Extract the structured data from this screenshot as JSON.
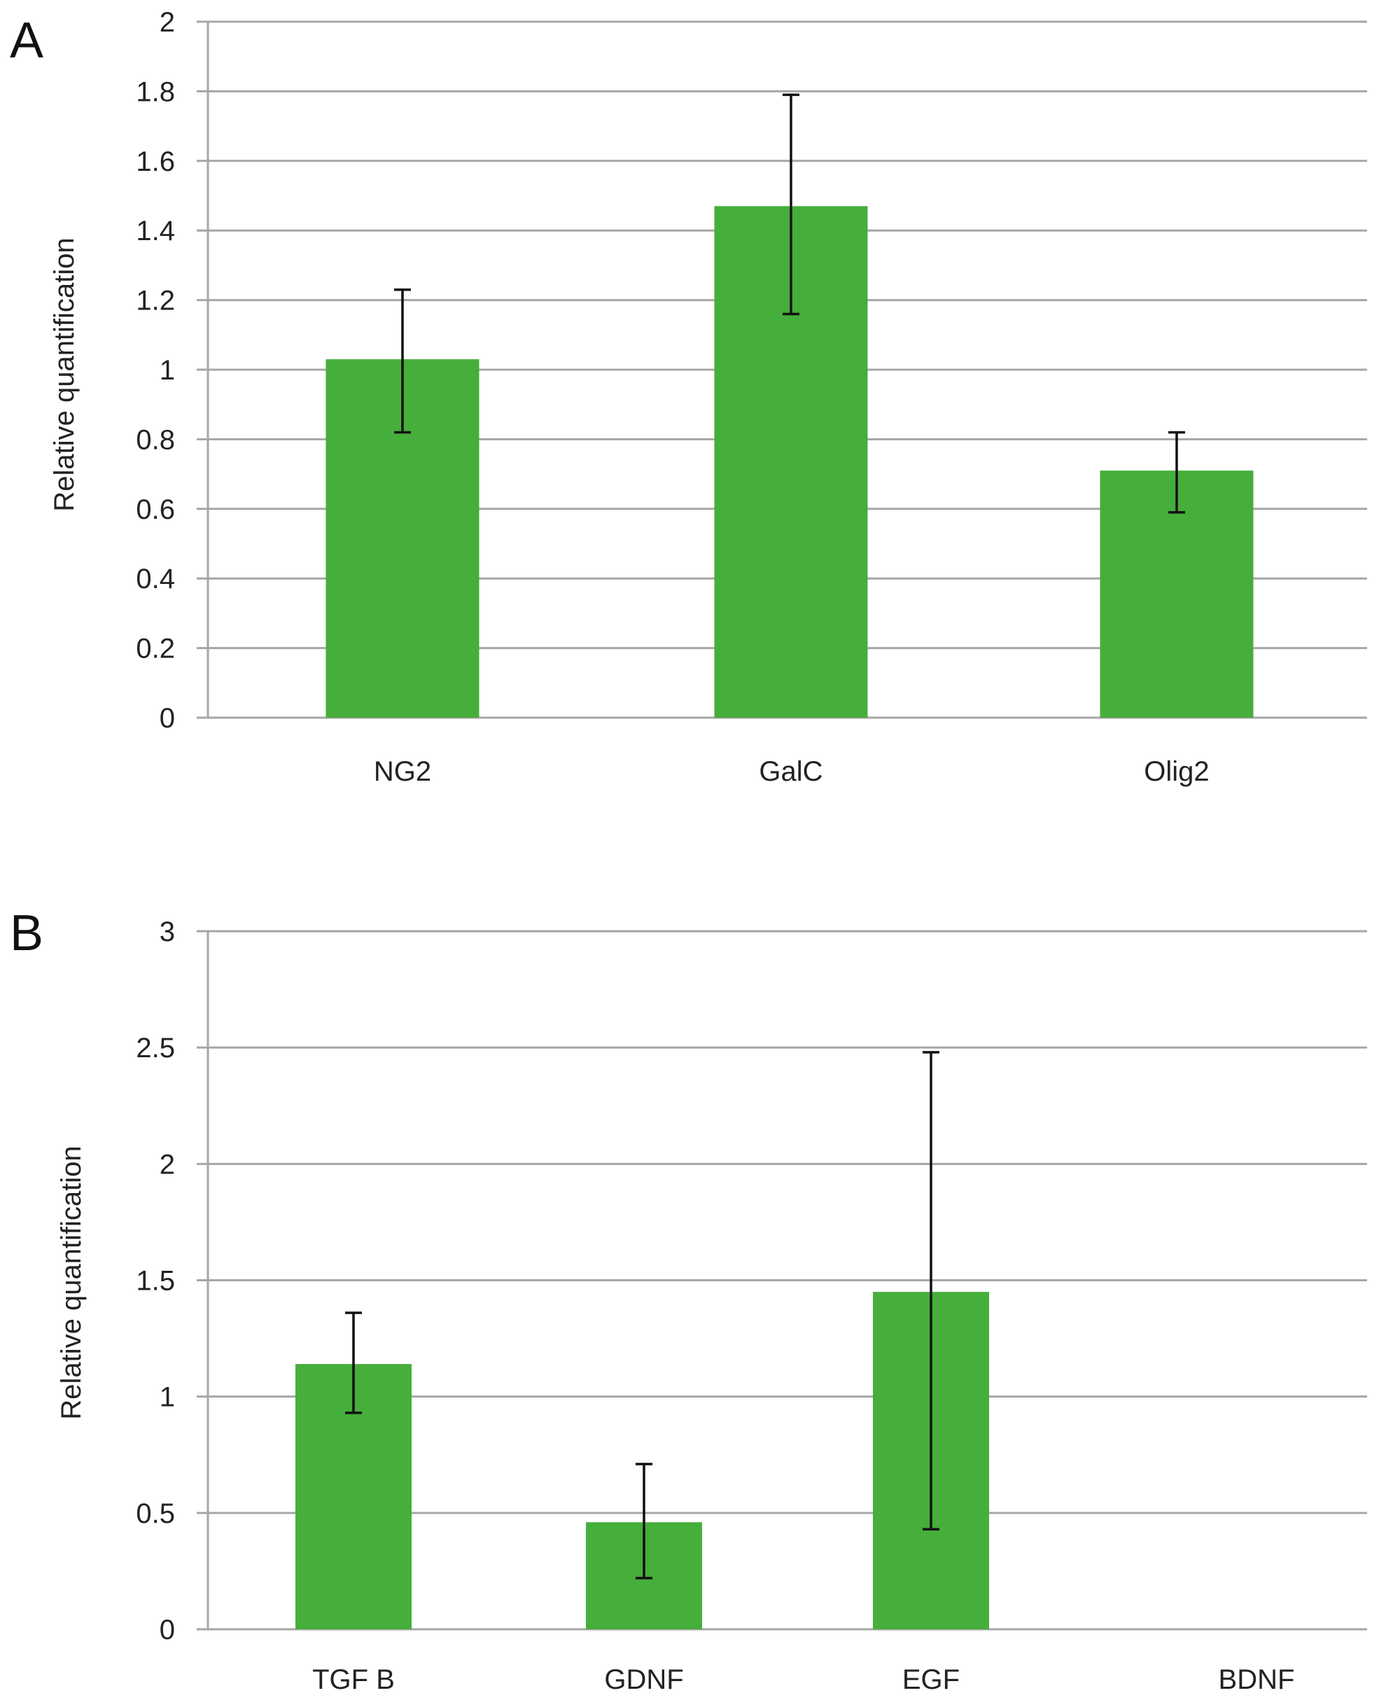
{
  "chart_data": [
    {
      "type": "bar",
      "panel_label": "A",
      "title": "",
      "xlabel": "",
      "ylabel": "Relative quantification",
      "ylim": [
        0,
        2
      ],
      "yticks": [
        0,
        0.2,
        0.4,
        0.6,
        0.8,
        1,
        1.2,
        1.4,
        1.6,
        1.8,
        2
      ],
      "ytick_labels": [
        "0",
        "0.2",
        "0.4",
        "0.6",
        "0.8",
        "1",
        "1.2",
        "1.4",
        "1.6",
        "1.8",
        "2"
      ],
      "categories": [
        "NG2",
        "GalC",
        "Olig2"
      ],
      "values": [
        1.03,
        1.47,
        0.71
      ],
      "error_low": [
        0.82,
        1.16,
        0.59
      ],
      "error_high": [
        1.23,
        1.79,
        0.82
      ],
      "grid": true,
      "bar_color": "#46ae3b",
      "grid_color": "#a6a6a6"
    },
    {
      "type": "bar",
      "panel_label": "B",
      "title": "",
      "xlabel": "",
      "ylabel": "Relative quantification",
      "ylim": [
        0,
        3
      ],
      "yticks": [
        0,
        0.5,
        1,
        1.5,
        2,
        2.5,
        3
      ],
      "ytick_labels": [
        "0",
        "0.5",
        "1",
        "1.5",
        "2",
        "2.5",
        "3"
      ],
      "categories": [
        "TGF B",
        "GDNF",
        "EGF",
        "BDNF"
      ],
      "values": [
        1.14,
        0.46,
        1.45,
        0
      ],
      "error_low": [
        0.93,
        0.22,
        0.43,
        null
      ],
      "error_high": [
        1.36,
        0.71,
        2.48,
        null
      ],
      "grid": true,
      "bar_color": "#46ae3b",
      "grid_color": "#a6a6a6"
    }
  ]
}
